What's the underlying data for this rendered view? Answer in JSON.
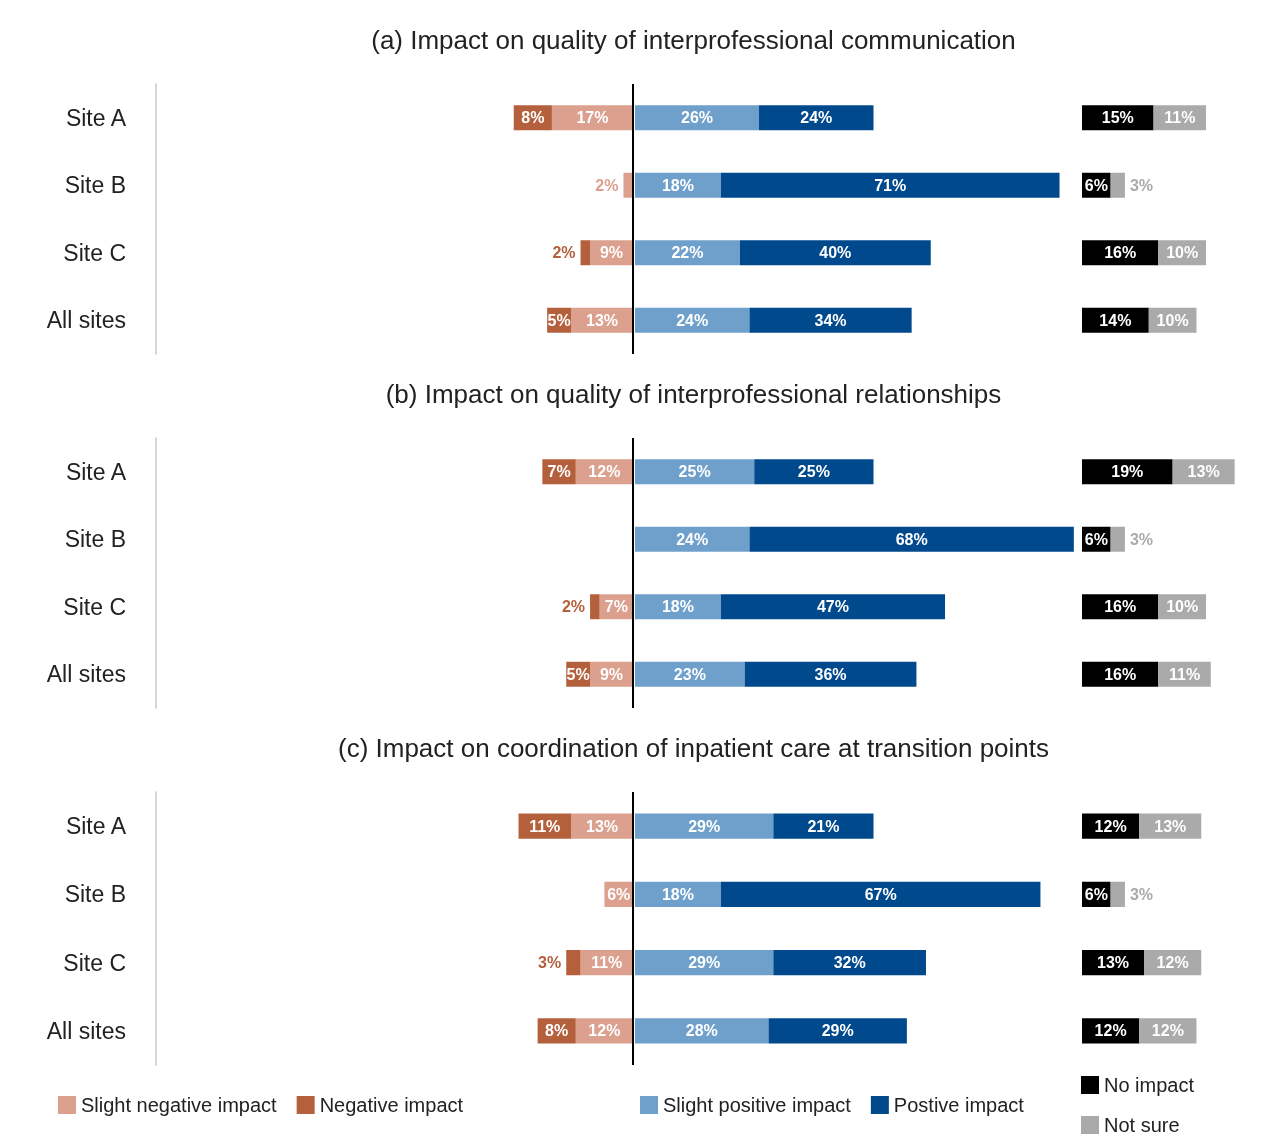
{
  "chart_data": [
    {
      "type": "bar",
      "orientation": "horizontal",
      "stacked": true,
      "title": "(a) Impact on quality of interprofessional communication",
      "categories": [
        "Site A",
        "Site B",
        "Site C",
        "All sites"
      ],
      "xlim": [
        100,
        0
      ],
      "tick_labels": "y",
      "legend": false,
      "ref_lines": [
        {
          "axis": "x",
          "value": 0,
          "color": "#000000"
        }
      ],
      "series": [
        {
          "color": "#dba08e",
          "values": [
            17,
            2,
            9,
            13
          ],
          "value_labels": [
            "17%",
            "2%",
            "9%",
            "13%"
          ]
        },
        {
          "color": "#b5603c",
          "values": [
            8,
            null,
            2,
            5
          ],
          "value_labels": [
            "8%",
            null,
            "2%",
            "5%"
          ]
        }
      ]
    },
    {
      "type": "bar",
      "orientation": "horizontal",
      "stacked": true,
      "categories": [
        null,
        null,
        null,
        null
      ],
      "tick_labels": false,
      "legend": false,
      "series": [
        {
          "color": "#6fa0cc",
          "values": [
            26,
            18,
            22,
            24
          ],
          "value_labels": [
            "26%",
            "18%",
            "22%",
            "24%"
          ]
        },
        {
          "color": "#00498c",
          "values": [
            24,
            71,
            40,
            34
          ],
          "value_labels": [
            "24%",
            "71%",
            "40%",
            "34%"
          ]
        }
      ]
    },
    {
      "type": "bar",
      "orientation": "horizontal",
      "stacked": true,
      "categories": [
        null,
        null,
        null,
        null
      ],
      "tick_labels": false,
      "legend": false,
      "series": [
        {
          "color": "#000000",
          "values": [
            15,
            6,
            16,
            14
          ],
          "value_labels": [
            "15%",
            "6%",
            "16%",
            "14%"
          ]
        },
        {
          "color": "#aaaaaa",
          "values": [
            11,
            3,
            10,
            10
          ],
          "value_labels": [
            "11%",
            "3%",
            "10%",
            "10%"
          ]
        }
      ]
    },
    {
      "type": "bar",
      "orientation": "horizontal",
      "stacked": true,
      "title": "(b) Impact on quality of interprofessional relationships",
      "categories": [
        "Site A",
        "Site B",
        "Site C",
        "All sites"
      ],
      "xlim": [
        100,
        0
      ],
      "tick_labels": "y",
      "legend": false,
      "ref_lines": [
        {
          "axis": "x",
          "value": 0,
          "color": "#000000"
        }
      ],
      "series": [
        {
          "color": "#dba08e",
          "values": [
            12,
            null,
            7,
            9
          ],
          "value_labels": [
            "12%",
            null,
            "7%",
            "9%"
          ]
        },
        {
          "color": "#b5603c",
          "values": [
            7,
            null,
            2,
            5
          ],
          "value_labels": [
            "7%",
            null,
            "2%",
            "5%"
          ]
        }
      ]
    },
    {
      "type": "bar",
      "orientation": "horizontal",
      "stacked": true,
      "categories": [
        null,
        null,
        null,
        null
      ],
      "tick_labels": false,
      "legend": false,
      "series": [
        {
          "color": "#6fa0cc",
          "values": [
            25,
            24,
            18,
            23
          ],
          "value_labels": [
            "25%",
            "24%",
            "18%",
            "23%"
          ]
        },
        {
          "color": "#00498c",
          "values": [
            25,
            68,
            47,
            36
          ],
          "value_labels": [
            "25%",
            "68%",
            "47%",
            "36%"
          ]
        }
      ]
    },
    {
      "type": "bar",
      "orientation": "horizontal",
      "stacked": true,
      "categories": [
        null,
        null,
        null,
        null
      ],
      "tick_labels": false,
      "legend": false,
      "series": [
        {
          "color": "#000000",
          "values": [
            19,
            6,
            16,
            16
          ],
          "value_labels": [
            "19%",
            "6%",
            "16%",
            "16%"
          ]
        },
        {
          "color": "#aaaaaa",
          "values": [
            13,
            3,
            10,
            11
          ],
          "value_labels": [
            "13%",
            "3%",
            "10%",
            "11%"
          ]
        }
      ]
    },
    {
      "type": "bar",
      "orientation": "horizontal",
      "stacked": true,
      "title": "(c) Impact on coordination of inpatient care at transition points",
      "categories": [
        "Site A",
        "Site B",
        "Site C",
        "All sites"
      ],
      "xlim": [
        100,
        0
      ],
      "tick_labels": "y",
      "legend": "bottom",
      "ref_lines": [
        {
          "axis": "x",
          "value": 0,
          "color": "#000000"
        }
      ],
      "series": [
        {
          "name": "Slight negative impact",
          "color": "#dba08e",
          "values": [
            13,
            6,
            11,
            12
          ],
          "value_labels": [
            "13%",
            "6%",
            "11%",
            "12%"
          ]
        },
        {
          "name": "Negative impact",
          "color": "#b5603c",
          "values": [
            11,
            null,
            3,
            8
          ],
          "value_labels": [
            "11%",
            null,
            "3%",
            "8%"
          ]
        }
      ]
    },
    {
      "type": "bar",
      "orientation": "horizontal",
      "stacked": true,
      "categories": [
        null,
        null,
        null,
        null
      ],
      "tick_labels": false,
      "legend": "bottom",
      "series": [
        {
          "name": "Slight positive impact",
          "color": "#6fa0cc",
          "values": [
            29,
            18,
            29,
            28
          ],
          "value_labels": [
            "29%",
            "18%",
            "29%",
            "28%"
          ]
        },
        {
          "name": "Postive impact",
          "color": "#00498c",
          "values": [
            21,
            67,
            32,
            29
          ],
          "value_labels": [
            "21%",
            "67%",
            "32%",
            "29%"
          ]
        }
      ]
    },
    {
      "type": "bar",
      "orientation": "horizontal",
      "stacked": true,
      "categories": [
        null,
        null,
        null,
        null
      ],
      "tick_labels": false,
      "legend": "bottom",
      "series": [
        {
          "name": "No impact",
          "color": "#000000",
          "values": [
            12,
            6,
            13,
            12
          ],
          "value_labels": [
            "12%",
            "6%",
            "13%",
            "12%"
          ]
        },
        {
          "name": "Not sure",
          "color": "#aaaaaa",
          "values": [
            13,
            3,
            12,
            12
          ],
          "value_labels": [
            "13%",
            "3%",
            "12%",
            "12%"
          ]
        }
      ]
    }
  ]
}
